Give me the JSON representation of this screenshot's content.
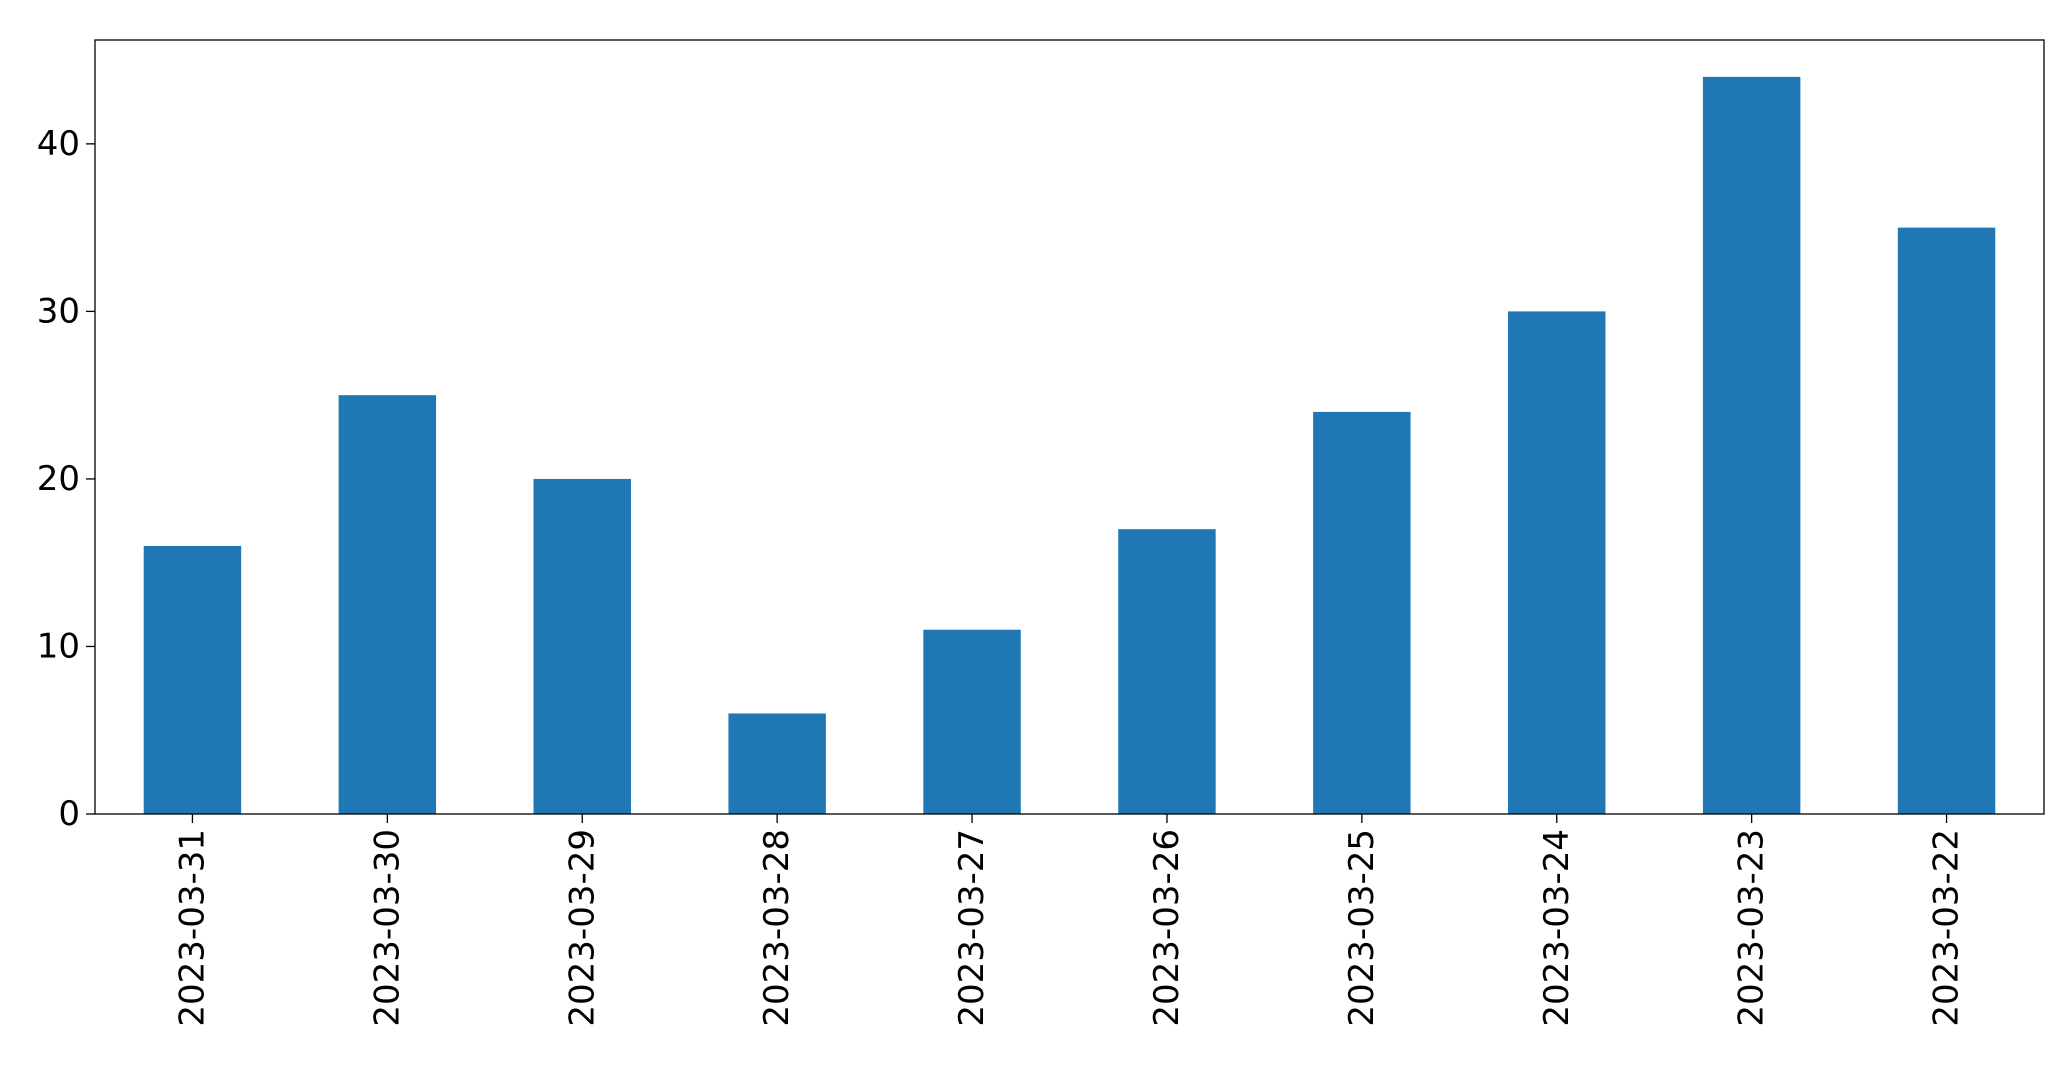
{
  "chart_data": {
    "type": "bar",
    "title": "",
    "xlabel": "",
    "ylabel": "",
    "categories": [
      "2023-03-31",
      "2023-03-30",
      "2023-03-29",
      "2023-03-28",
      "2023-03-27",
      "2023-03-26",
      "2023-03-25",
      "2023-03-24",
      "2023-03-23",
      "2023-03-22"
    ],
    "values": [
      16,
      25,
      20,
      6,
      11,
      17,
      24,
      30,
      44,
      35
    ],
    "ylim": [
      0,
      46.2
    ],
    "yticks": [
      0,
      10,
      20,
      30,
      40
    ],
    "grid": false,
    "legend": "none",
    "bar_color": "#1f77b4"
  }
}
